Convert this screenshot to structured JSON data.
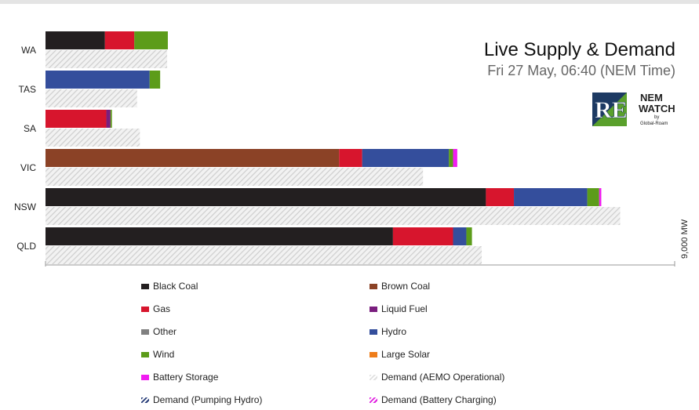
{
  "header": {
    "title": "Live Supply & Demand",
    "subtitle": "Fri 27 May, 06:40 (NEM Time)"
  },
  "logos": {
    "re_text": "RE",
    "nemwatch_line1": "NEM",
    "nemwatch_line2": "WATCH",
    "nemwatch_by": "by",
    "nemwatch_company": "Global-Roam"
  },
  "chart_data": {
    "type": "bar",
    "orientation": "horizontal",
    "stacked": true,
    "xlim": [
      0,
      9000
    ],
    "x_tick_label": "9,000 MW",
    "categories": [
      "WA",
      "TAS",
      "SA",
      "VIC",
      "NSW",
      "QLD"
    ],
    "series": [
      {
        "name": "Black Coal",
        "color": "#231f20",
        "values": [
          850,
          0,
          0,
          0,
          6300,
          4970
        ]
      },
      {
        "name": "Brown Coal",
        "color": "#8b4226",
        "values": [
          0,
          0,
          0,
          4200,
          0,
          0
        ]
      },
      {
        "name": "Gas",
        "color": "#d7152d",
        "values": [
          420,
          0,
          870,
          330,
          400,
          860
        ]
      },
      {
        "name": "Liquid Fuel",
        "color": "#7a1e7e",
        "values": [
          0,
          0,
          60,
          0,
          0,
          0
        ]
      },
      {
        "name": "Other",
        "color": "#808080",
        "values": [
          0,
          0,
          0,
          0,
          0,
          0
        ]
      },
      {
        "name": "Hydro",
        "color": "#344e9c",
        "values": [
          0,
          1490,
          0,
          1240,
          1050,
          190
        ]
      },
      {
        "name": "Wind",
        "color": "#5c9c1a",
        "values": [
          480,
          150,
          20,
          60,
          170,
          80
        ]
      },
      {
        "name": "Large Solar",
        "color": "#ee7d1a",
        "values": [
          0,
          0,
          0,
          0,
          0,
          0
        ]
      },
      {
        "name": "Battery Storage",
        "color": "#f11cf1",
        "values": [
          0,
          0,
          0,
          60,
          30,
          0
        ]
      }
    ],
    "demand": {
      "name": "Demand (AEMO Operational)",
      "values": [
        1740,
        1310,
        1350,
        5400,
        8220,
        6240
      ]
    },
    "legend": [
      {
        "label": "Black Coal",
        "color": "#231f20",
        "pattern": "solid"
      },
      {
        "label": "Brown Coal",
        "color": "#8b4226",
        "pattern": "solid"
      },
      {
        "label": "Gas",
        "color": "#d7152d",
        "pattern": "solid"
      },
      {
        "label": "Liquid Fuel",
        "color": "#7a1e7e",
        "pattern": "solid"
      },
      {
        "label": "Other",
        "color": "#808080",
        "pattern": "solid"
      },
      {
        "label": "Hydro",
        "color": "#344e9c",
        "pattern": "solid"
      },
      {
        "label": "Wind",
        "color": "#5c9c1a",
        "pattern": "solid"
      },
      {
        "label": "Large Solar",
        "color": "#ee7d1a",
        "pattern": "solid"
      },
      {
        "label": "Battery Storage",
        "color": "#f11cf1",
        "pattern": "solid"
      },
      {
        "label": "Demand (AEMO Operational)",
        "color": "#e0e0e0",
        "pattern": "demand"
      },
      {
        "label": "Demand (Pumping Hydro)",
        "color": "#2a3f7a",
        "pattern": "pump"
      },
      {
        "label": "Demand (Battery Charging)",
        "color": "#e020e0",
        "pattern": "batt"
      }
    ],
    "legend_position": "bottom"
  }
}
